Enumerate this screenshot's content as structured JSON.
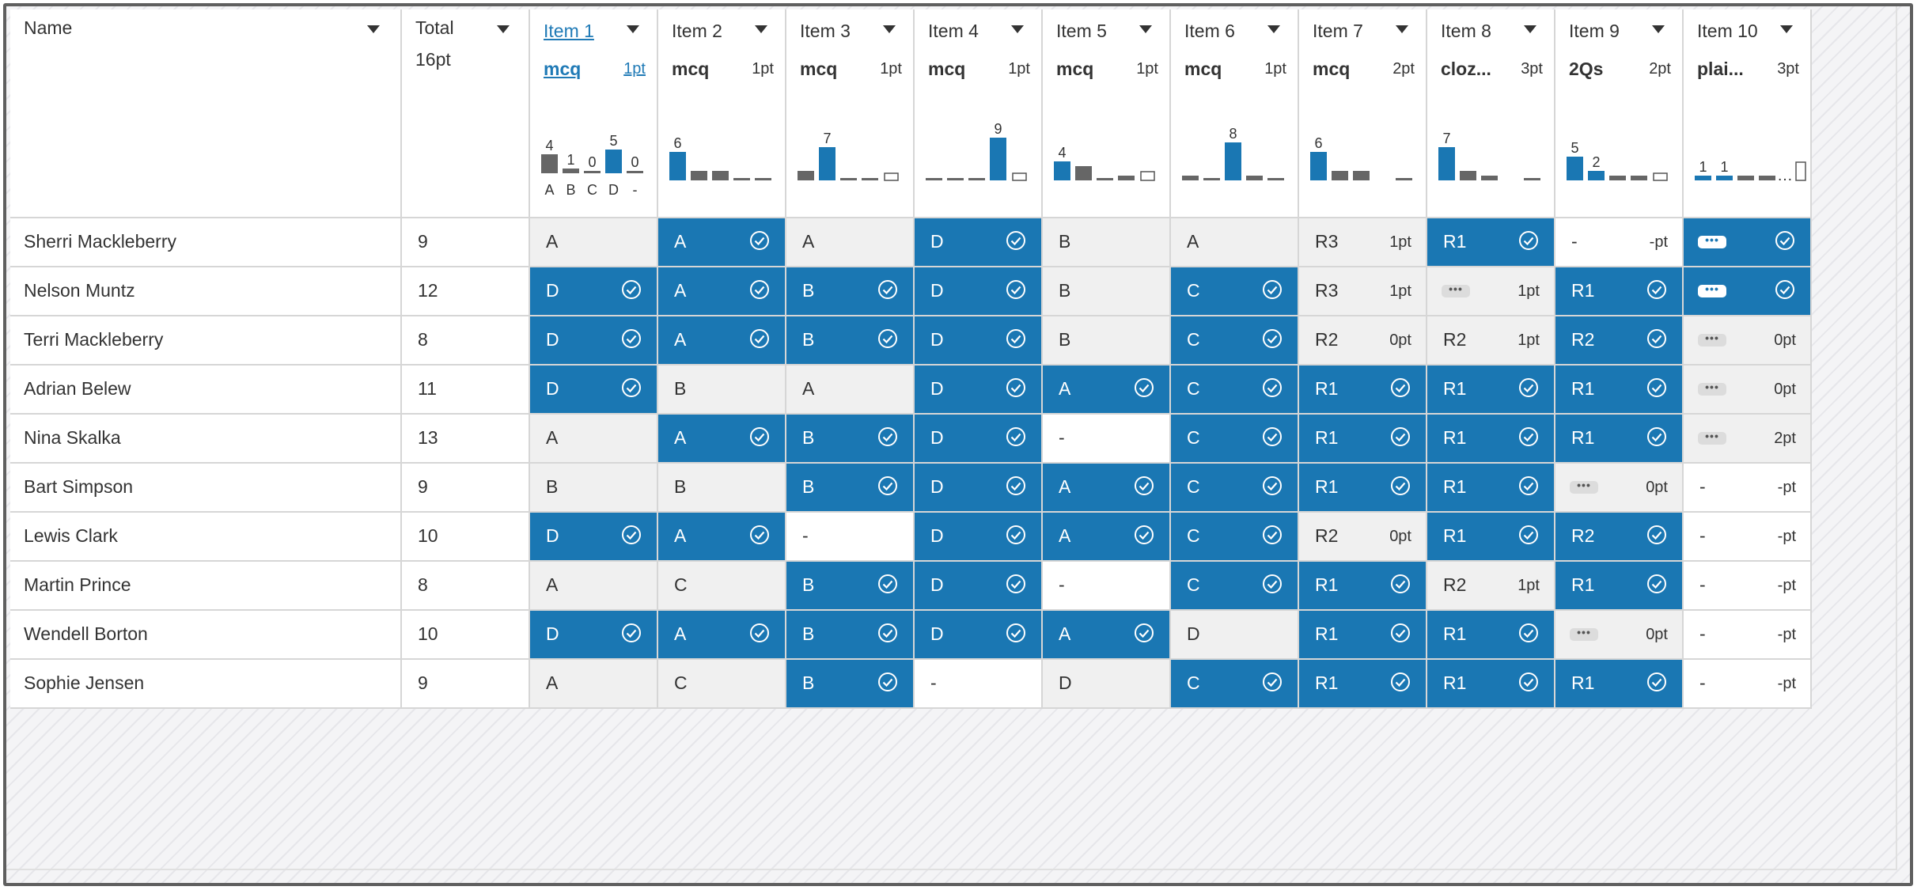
{
  "header": {
    "name_label": "Name",
    "total_label": "Total",
    "total_points": "16pt"
  },
  "items": [
    {
      "label": "Item 1",
      "type": "mcq",
      "pts": "1pt",
      "link": true,
      "bars": [
        {
          "v": 4,
          "c": "gray"
        },
        {
          "v": 1,
          "c": "gray"
        },
        {
          "v": 0,
          "c": "gray"
        },
        {
          "v": 5,
          "c": "blue"
        },
        {
          "v": 0,
          "c": "gray"
        }
      ],
      "labels": [
        "4",
        "1",
        "0",
        "5",
        "0"
      ],
      "axis": [
        "A",
        "B",
        "C",
        "D",
        "-"
      ]
    },
    {
      "label": "Item 2",
      "type": "mcq",
      "pts": "1pt",
      "bars": [
        {
          "v": 6,
          "c": "blue"
        },
        {
          "v": 2,
          "c": "gray"
        },
        {
          "v": 2,
          "c": "gray"
        },
        {
          "v": 0,
          "c": "gray"
        },
        {
          "v": 0,
          "c": "gray"
        }
      ],
      "labels": [
        "6",
        "",
        "",
        "",
        ""
      ]
    },
    {
      "label": "Item 3",
      "type": "mcq",
      "pts": "1pt",
      "bars": [
        {
          "v": 2,
          "c": "gray"
        },
        {
          "v": 7,
          "c": "blue"
        },
        {
          "v": 0,
          "c": "gray"
        },
        {
          "v": 0,
          "c": "gray"
        },
        {
          "v": 1,
          "c": "outline"
        }
      ],
      "labels": [
        "",
        "7",
        "",
        "",
        ""
      ]
    },
    {
      "label": "Item 4",
      "type": "mcq",
      "pts": "1pt",
      "bars": [
        {
          "v": 0,
          "c": "gray"
        },
        {
          "v": 0,
          "c": "gray"
        },
        {
          "v": 0,
          "c": "gray"
        },
        {
          "v": 9,
          "c": "blue"
        },
        {
          "v": 1,
          "c": "outline"
        }
      ],
      "labels": [
        "",
        "",
        "",
        "9",
        ""
      ]
    },
    {
      "label": "Item 5",
      "type": "mcq",
      "pts": "1pt",
      "bars": [
        {
          "v": 4,
          "c": "blue"
        },
        {
          "v": 3,
          "c": "gray"
        },
        {
          "v": 0,
          "c": "gray"
        },
        {
          "v": 1,
          "c": "gray"
        },
        {
          "v": 2,
          "c": "outline"
        }
      ],
      "labels": [
        "4",
        "",
        "",
        "",
        ""
      ]
    },
    {
      "label": "Item 6",
      "type": "mcq",
      "pts": "1pt",
      "bars": [
        {
          "v": 1,
          "c": "gray"
        },
        {
          "v": 0,
          "c": "gray"
        },
        {
          "v": 8,
          "c": "blue"
        },
        {
          "v": 1,
          "c": "gray"
        },
        {
          "v": 0,
          "c": "gray"
        }
      ],
      "labels": [
        "",
        "",
        "8",
        "",
        ""
      ]
    },
    {
      "label": "Item 7",
      "type": "mcq",
      "pts": "2pt",
      "bars": [
        {
          "v": 6,
          "c": "blue"
        },
        {
          "v": 2,
          "c": "gray"
        },
        {
          "v": 2,
          "c": "gray"
        },
        {
          "v": 0,
          "c": "none"
        },
        {
          "v": 0,
          "c": "gray"
        }
      ],
      "labels": [
        "6",
        "",
        "",
        "",
        ""
      ]
    },
    {
      "label": "Item 8",
      "type": "cloz...",
      "pts": "3pt",
      "bars": [
        {
          "v": 7,
          "c": "blue"
        },
        {
          "v": 2,
          "c": "gray"
        },
        {
          "v": 1,
          "c": "gray"
        },
        {
          "v": 0,
          "c": "none"
        },
        {
          "v": 0,
          "c": "gray"
        }
      ],
      "labels": [
        "7",
        "",
        "",
        "",
        ""
      ]
    },
    {
      "label": "Item 9",
      "type": "2Qs",
      "pts": "2pt",
      "bars": [
        {
          "v": 5,
          "c": "blue"
        },
        {
          "v": 2,
          "c": "blue"
        },
        {
          "v": 1,
          "c": "gray"
        },
        {
          "v": 1,
          "c": "gray"
        },
        {
          "v": 1,
          "c": "outline"
        }
      ],
      "labels": [
        "5",
        "2",
        "",
        "",
        ""
      ]
    },
    {
      "label": "Item 10",
      "type": "plai...",
      "pts": "3pt",
      "bars": [
        {
          "v": 1,
          "c": "blue"
        },
        {
          "v": 1,
          "c": "blue"
        },
        {
          "v": 1,
          "c": "gray"
        },
        {
          "v": 1,
          "c": "gray"
        },
        {
          "v": 4,
          "c": "outline"
        }
      ],
      "labels": [
        "1",
        "1",
        "",
        "",
        ""
      ],
      "ellipsis": true
    }
  ],
  "rows": [
    {
      "name": "Sherri Mackleberry",
      "total": "9",
      "cells": [
        {
          "t": "plain",
          "a": "A"
        },
        {
          "t": "correct",
          "a": "A"
        },
        {
          "t": "plain",
          "a": "A"
        },
        {
          "t": "correct",
          "a": "D"
        },
        {
          "t": "plain",
          "a": "B"
        },
        {
          "t": "plain",
          "a": "A"
        },
        {
          "t": "plain",
          "a": "R3",
          "p": "1pt"
        },
        {
          "t": "correct",
          "a": "R1"
        },
        {
          "t": "empty",
          "a": "-",
          "p": "-pt"
        },
        {
          "t": "correct",
          "pill": true
        }
      ]
    },
    {
      "name": "Nelson Muntz",
      "total": "12",
      "cells": [
        {
          "t": "correct",
          "a": "D"
        },
        {
          "t": "correct",
          "a": "A"
        },
        {
          "t": "correct",
          "a": "B"
        },
        {
          "t": "correct",
          "a": "D"
        },
        {
          "t": "plain",
          "a": "B"
        },
        {
          "t": "correct",
          "a": "C"
        },
        {
          "t": "plain",
          "a": "R3",
          "p": "1pt"
        },
        {
          "t": "plain",
          "pill": true,
          "p": "1pt"
        },
        {
          "t": "correct",
          "a": "R1"
        },
        {
          "t": "correct",
          "pill": true
        }
      ]
    },
    {
      "name": "Terri Mackleberry",
      "total": "8",
      "cells": [
        {
          "t": "correct",
          "a": "D"
        },
        {
          "t": "correct",
          "a": "A"
        },
        {
          "t": "correct",
          "a": "B"
        },
        {
          "t": "correct",
          "a": "D"
        },
        {
          "t": "plain",
          "a": "B"
        },
        {
          "t": "correct",
          "a": "C"
        },
        {
          "t": "plain",
          "a": "R2",
          "p": "0pt"
        },
        {
          "t": "plain",
          "a": "R2",
          "p": "1pt"
        },
        {
          "t": "correct",
          "a": "R2"
        },
        {
          "t": "plain",
          "pill": true,
          "p": "0pt"
        }
      ]
    },
    {
      "name": "Adrian Belew",
      "total": "11",
      "cells": [
        {
          "t": "correct",
          "a": "D"
        },
        {
          "t": "plain",
          "a": "B"
        },
        {
          "t": "plain",
          "a": "A"
        },
        {
          "t": "correct",
          "a": "D"
        },
        {
          "t": "correct",
          "a": "A"
        },
        {
          "t": "correct",
          "a": "C"
        },
        {
          "t": "correct",
          "a": "R1"
        },
        {
          "t": "correct",
          "a": "R1"
        },
        {
          "t": "correct",
          "a": "R1"
        },
        {
          "t": "plain",
          "pill": true,
          "p": "0pt"
        }
      ]
    },
    {
      "name": "Nina Skalka",
      "total": "13",
      "cells": [
        {
          "t": "plain",
          "a": "A"
        },
        {
          "t": "correct",
          "a": "A"
        },
        {
          "t": "correct",
          "a": "B"
        },
        {
          "t": "correct",
          "a": "D"
        },
        {
          "t": "empty",
          "a": "-"
        },
        {
          "t": "correct",
          "a": "C"
        },
        {
          "t": "correct",
          "a": "R1"
        },
        {
          "t": "correct",
          "a": "R1"
        },
        {
          "t": "correct",
          "a": "R1"
        },
        {
          "t": "plain",
          "pill": true,
          "p": "2pt"
        }
      ]
    },
    {
      "name": "Bart Simpson",
      "total": "9",
      "cells": [
        {
          "t": "plain",
          "a": "B"
        },
        {
          "t": "plain",
          "a": "B"
        },
        {
          "t": "correct",
          "a": "B"
        },
        {
          "t": "correct",
          "a": "D"
        },
        {
          "t": "correct",
          "a": "A"
        },
        {
          "t": "correct",
          "a": "C"
        },
        {
          "t": "correct",
          "a": "R1"
        },
        {
          "t": "correct",
          "a": "R1"
        },
        {
          "t": "plain",
          "pill": true,
          "p": "0pt"
        },
        {
          "t": "empty",
          "a": "-",
          "p": "-pt"
        }
      ]
    },
    {
      "name": "Lewis Clark",
      "total": "10",
      "cells": [
        {
          "t": "correct",
          "a": "D"
        },
        {
          "t": "correct",
          "a": "A"
        },
        {
          "t": "empty",
          "a": "-"
        },
        {
          "t": "correct",
          "a": "D"
        },
        {
          "t": "correct",
          "a": "A"
        },
        {
          "t": "correct",
          "a": "C"
        },
        {
          "t": "plain",
          "a": "R2",
          "p": "0pt"
        },
        {
          "t": "correct",
          "a": "R1"
        },
        {
          "t": "correct",
          "a": "R2"
        },
        {
          "t": "empty",
          "a": "-",
          "p": "-pt"
        }
      ]
    },
    {
      "name": "Martin Prince",
      "total": "8",
      "cells": [
        {
          "t": "plain",
          "a": "A"
        },
        {
          "t": "plain",
          "a": "C"
        },
        {
          "t": "correct",
          "a": "B"
        },
        {
          "t": "correct",
          "a": "D"
        },
        {
          "t": "empty",
          "a": "-"
        },
        {
          "t": "correct",
          "a": "C"
        },
        {
          "t": "correct",
          "a": "R1"
        },
        {
          "t": "plain",
          "a": "R2",
          "p": "1pt"
        },
        {
          "t": "correct",
          "a": "R1"
        },
        {
          "t": "empty",
          "a": "-",
          "p": "-pt"
        }
      ]
    },
    {
      "name": "Wendell Borton",
      "total": "10",
      "cells": [
        {
          "t": "correct",
          "a": "D"
        },
        {
          "t": "correct",
          "a": "A"
        },
        {
          "t": "correct",
          "a": "B"
        },
        {
          "t": "correct",
          "a": "D"
        },
        {
          "t": "correct",
          "a": "A"
        },
        {
          "t": "plain",
          "a": "D"
        },
        {
          "t": "correct",
          "a": "R1"
        },
        {
          "t": "correct",
          "a": "R1"
        },
        {
          "t": "plain",
          "pill": true,
          "p": "0pt"
        },
        {
          "t": "empty",
          "a": "-",
          "p": "-pt"
        }
      ]
    },
    {
      "name": "Sophie Jensen",
      "total": "9",
      "cells": [
        {
          "t": "plain",
          "a": "A"
        },
        {
          "t": "plain",
          "a": "C"
        },
        {
          "t": "correct",
          "a": "B"
        },
        {
          "t": "empty",
          "a": "-"
        },
        {
          "t": "plain",
          "a": "D"
        },
        {
          "t": "correct",
          "a": "C"
        },
        {
          "t": "correct",
          "a": "R1"
        },
        {
          "t": "correct",
          "a": "R1"
        },
        {
          "t": "correct",
          "a": "R1"
        },
        {
          "t": "empty",
          "a": "-",
          "p": "-pt"
        }
      ]
    }
  ],
  "colors": {
    "correct": "#1a77b3",
    "bar_blue": "#1a77b3",
    "bar_gray": "#666666",
    "plain": "#f0f0f0"
  },
  "icons": {
    "check": "check-circle-icon",
    "caret": "caret-down-icon",
    "more": "more-dots-icon"
  }
}
